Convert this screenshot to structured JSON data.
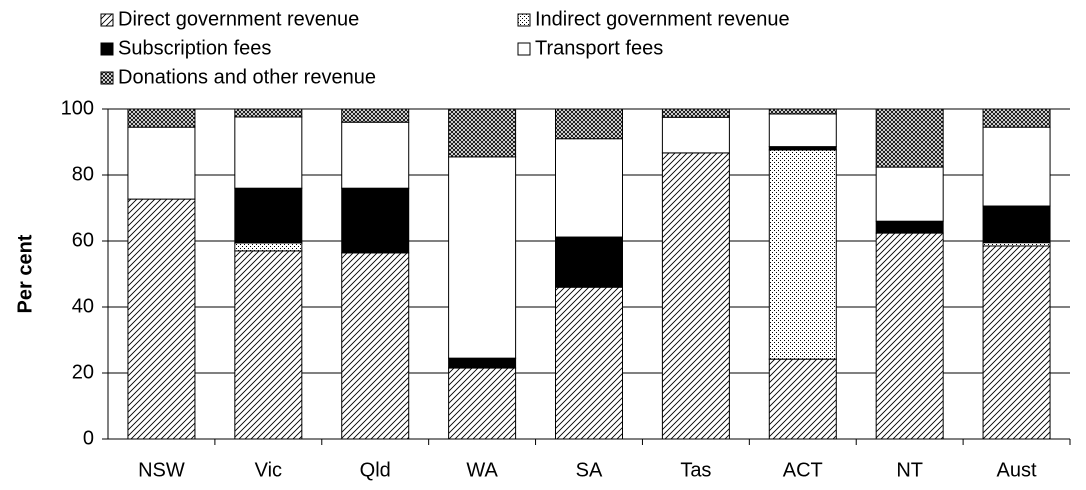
{
  "chart_data": {
    "type": "stacked_bar",
    "categories": [
      "NSW",
      "Vic",
      "Qld",
      "WA",
      "SA",
      "Tas",
      "ACT",
      "NT",
      "Aust"
    ],
    "series": [
      {
        "name": "Direct government revenue",
        "color": "#000000",
        "pattern": "diagonal",
        "values": [
          72.7,
          57,
          56.4,
          21.5,
          46,
          86.7,
          24.2,
          62.4,
          58.5
        ]
      },
      {
        "name": "Indirect government revenue",
        "color": "#000000",
        "pattern": "dots",
        "values": [
          0,
          2.4,
          0,
          0,
          0,
          0,
          63.4,
          0,
          1
        ]
      },
      {
        "name": "Subscription fees",
        "color": "#000000",
        "pattern": "solid",
        "values": [
          0,
          16.6,
          19.6,
          3,
          15.2,
          0,
          1,
          3.6,
          11.1
        ]
      },
      {
        "name": "Transport fees",
        "color": "#ffffff",
        "pattern": "solid",
        "values": [
          21.8,
          21.6,
          20,
          61,
          29.8,
          10.8,
          9.9,
          16.4,
          23.9
        ]
      },
      {
        "name": "Donations and other revenue",
        "color": "#000000",
        "pattern": "crosshatch",
        "values": [
          5.5,
          2.4,
          4,
          14.5,
          9,
          2.5,
          1.5,
          17.6,
          5.5
        ]
      }
    ],
    "y_label": "Per cent",
    "ylim": [
      0,
      100
    ],
    "yticks": [
      0,
      20,
      40,
      60,
      80,
      100
    ],
    "grid": true
  }
}
